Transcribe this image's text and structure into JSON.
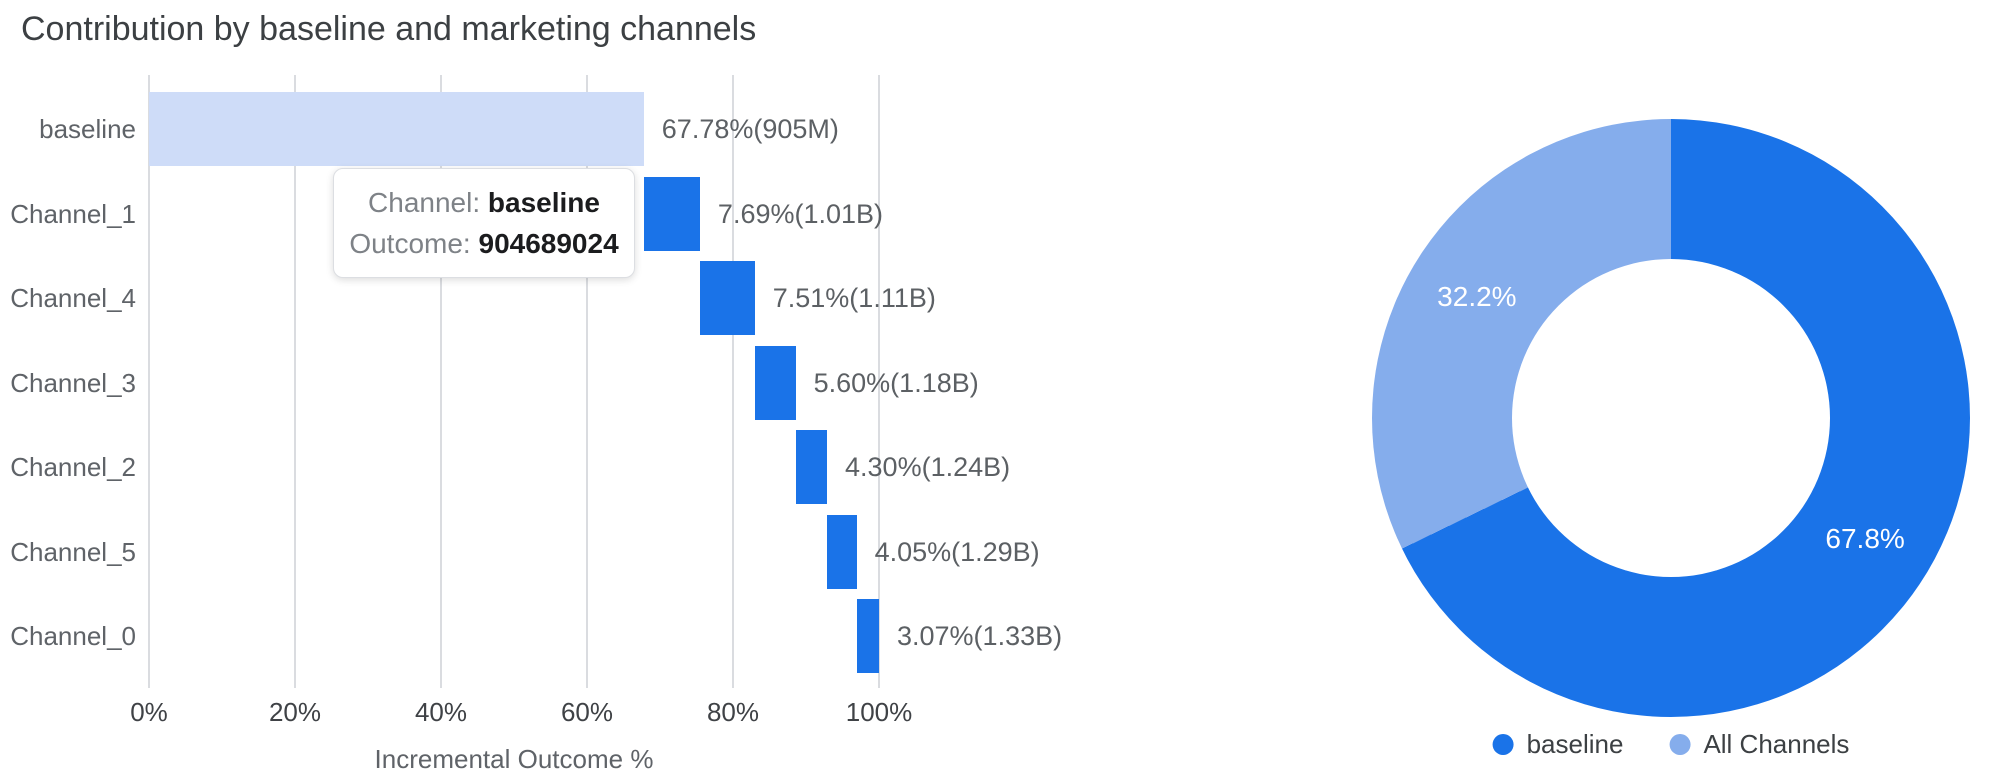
{
  "title": "Contribution by baseline and marketing channels",
  "tooltip": {
    "channel_key": "Channel:",
    "channel_value": "baseline",
    "outcome_key": "Outcome:",
    "outcome_value": "904689024"
  },
  "colors": {
    "primary_blue": "#1a73e8",
    "baseline_bar_blue": "#cedcf8",
    "all_channels_blue": "#85adec",
    "grid_gray": "#dadce0",
    "title_gray": "#3c4043",
    "label_gray": "#5f6368"
  },
  "chart_data": [
    {
      "type": "bar",
      "subtype": "horizontal_waterfall",
      "title": "Contribution by baseline and marketing channels",
      "xlabel": "Incremental Outcome %",
      "xlim": [
        0,
        100
      ],
      "x_ticks": [
        "0%",
        "20%",
        "40%",
        "60%",
        "80%",
        "100%"
      ],
      "grid": true,
      "categories": [
        "baseline",
        "Channel_1",
        "Channel_4",
        "Channel_3",
        "Channel_2",
        "Channel_5",
        "Channel_0"
      ],
      "values_pct": [
        67.78,
        7.69,
        7.51,
        5.6,
        4.3,
        4.05,
        3.07
      ],
      "cumulative_end_pct": [
        67.78,
        75.47,
        82.98,
        88.58,
        92.88,
        96.93,
        100.0
      ],
      "bar_labels": [
        "67.78%(905M)",
        "7.69%(1.01B)",
        "7.51%(1.11B)",
        "5.60%(1.18B)",
        "4.30%(1.24B)",
        "4.05%(1.29B)",
        "3.07%(1.33B)"
      ],
      "bar_colors": [
        "#cedcf8",
        "#1a73e8",
        "#1a73e8",
        "#1a73e8",
        "#1a73e8",
        "#1a73e8",
        "#1a73e8"
      ]
    },
    {
      "type": "pie",
      "subtype": "donut",
      "start_angle_deg": 0,
      "direction": "clockwise",
      "legend_position": "bottom",
      "slices": [
        {
          "label": "baseline",
          "value": 67.8,
          "display": "67.8%",
          "color": "#1a73e8"
        },
        {
          "label": "All Channels",
          "value": 32.2,
          "display": "32.2%",
          "color": "#85adec"
        }
      ]
    }
  ]
}
